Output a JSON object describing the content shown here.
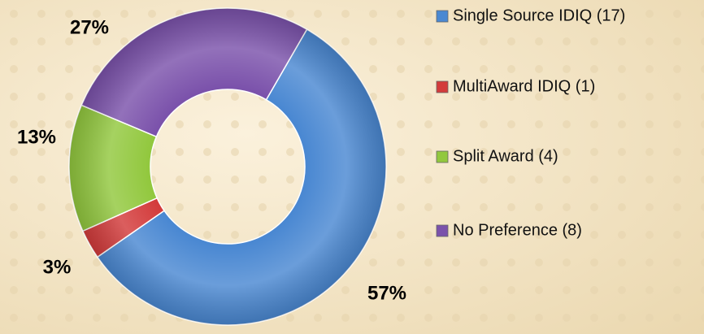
{
  "chart_data": {
    "type": "donut",
    "categories": [
      "Single Source IDIQ (17)",
      "MultiAward IDIQ (1)",
      "Split Award (4)",
      "No Preference (8)"
    ],
    "values": [
      57,
      3,
      13,
      27
    ],
    "value_labels": [
      "57%",
      "3%",
      "13%",
      "27%"
    ],
    "colors": [
      "#4a88d2",
      "#d33b3b",
      "#92c83e",
      "#7b52ab"
    ],
    "legend": "right"
  }
}
